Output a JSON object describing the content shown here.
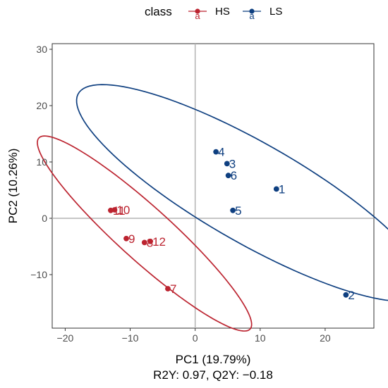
{
  "chart_data": {
    "type": "scatter",
    "title": "",
    "xlabel": "PC1 (19.79%)",
    "xlabel_line2": "R2Y: 0.97, Q2Y: −0.18",
    "ylabel": "PC2 (10.26%)",
    "xlim": [
      -22,
      27.5
    ],
    "ylim": [
      -19.5,
      31
    ],
    "xticks": [
      -20,
      -10,
      0,
      10,
      20
    ],
    "xtick_labels": [
      "−20",
      "−10",
      "0",
      "10",
      "20"
    ],
    "yticks": [
      -10,
      0,
      10,
      20,
      30
    ],
    "ytick_labels": [
      "−10",
      "0",
      "10",
      "20",
      "30"
    ],
    "grid": false,
    "zero_lines": true,
    "legend": {
      "title": "class",
      "placement": "top",
      "key_glyph": "a",
      "entries": [
        {
          "label": "HS",
          "color": "#BC2430"
        },
        {
          "label": "LS",
          "color": "#0E3F80"
        }
      ]
    },
    "series": [
      {
        "name": "HS",
        "color": "#BC2430",
        "points": [
          {
            "label": "10",
            "x": -12.4,
            "y": 1.5
          },
          {
            "label": "11",
            "x": -13.0,
            "y": 1.4
          },
          {
            "label": "9",
            "x": -10.6,
            "y": -3.6
          },
          {
            "label": "8",
            "x": -7.8,
            "y": -4.3
          },
          {
            "label": "12",
            "x": -6.9,
            "y": -4.1
          },
          {
            "label": "7",
            "x": -4.2,
            "y": -12.5
          }
        ],
        "ellipse": {
          "cx": -7.8,
          "cy": -2.7,
          "rx": 23.5,
          "ry": 4.4,
          "angle_deg": -46.5
        }
      },
      {
        "name": "LS",
        "color": "#0E3F80",
        "points": [
          {
            "label": "4",
            "x": 3.2,
            "y": 11.8
          },
          {
            "label": "3",
            "x": 4.9,
            "y": 9.7
          },
          {
            "label": "6",
            "x": 5.1,
            "y": 7.6
          },
          {
            "label": "1",
            "x": 12.5,
            "y": 5.2
          },
          {
            "label": "5",
            "x": 5.8,
            "y": 1.4
          },
          {
            "label": "2",
            "x": 23.2,
            "y": -13.6
          }
        ],
        "ellipse": {
          "cx": 8.7,
          "cy": 4.5,
          "rx": 32.0,
          "ry": 8.5,
          "angle_deg": -34
        }
      }
    ]
  }
}
